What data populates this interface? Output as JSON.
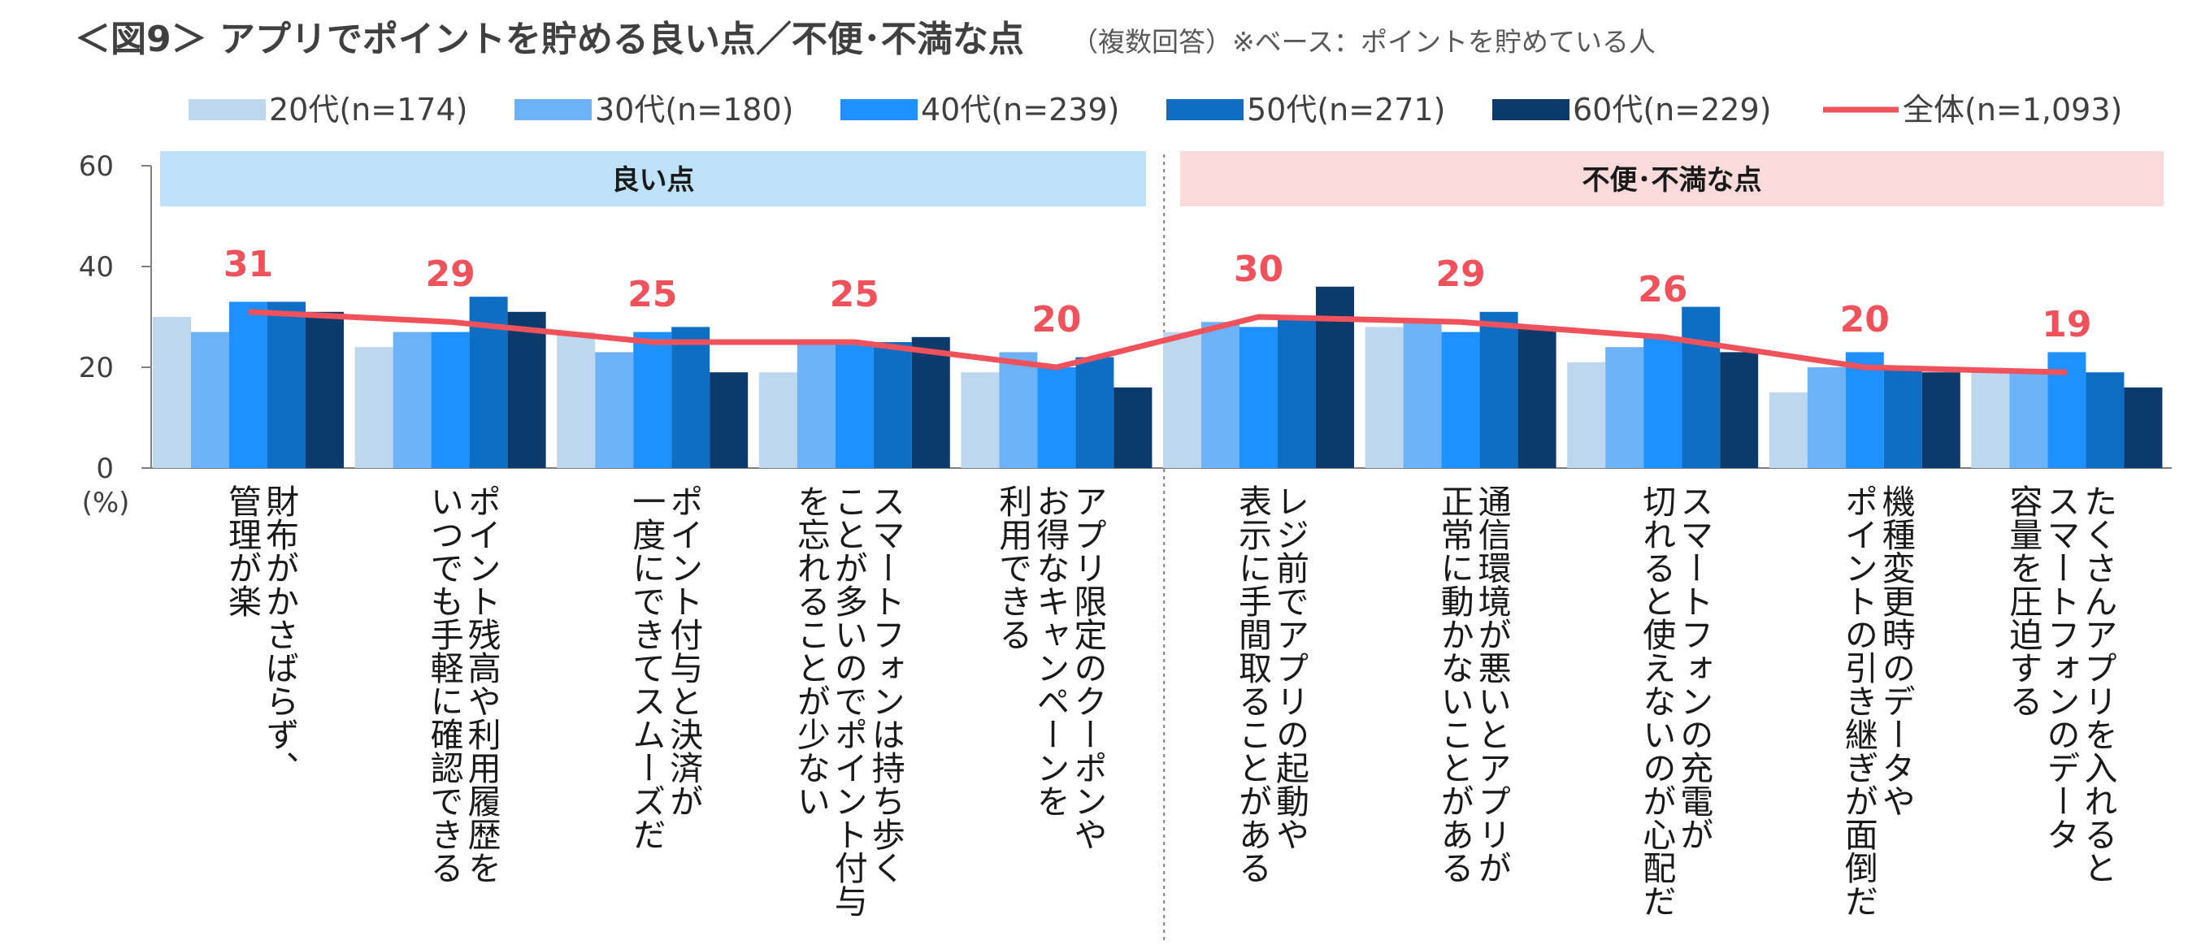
{
  "header": {
    "title": "＜図9＞ アプリでポイントを貯める良い点／不便･不満な点",
    "subtitle": "（複数回答）※ベース：ポイントを貯めている人"
  },
  "colors": {
    "s20": "#BDD7EE",
    "s30": "#6DB2F7",
    "s40": "#1E90FF",
    "s50": "#0E6EC4",
    "s60": "#0B3A6B",
    "total": "#F0525C",
    "good_band": "#BDE2FA",
    "bad_band": "#FBDADB"
  },
  "chart_data": {
    "type": "bar",
    "overlay_type": "line",
    "ylabel": "(%)",
    "ylim": [
      0,
      60
    ],
    "yticks": [
      "0",
      "20",
      "40",
      "60"
    ],
    "grid": false,
    "legend_position": "top",
    "sections": [
      {
        "label": "良い点",
        "from": 0,
        "to": 4
      },
      {
        "label": "不便･不満な点",
        "from": 5,
        "to": 9
      }
    ],
    "categories": [
      [
        "財布がかさばらず、",
        "管理が楽"
      ],
      [
        "ポイント残高や利用履歴を",
        "いつでも手軽に確認できる"
      ],
      [
        "ポイント付与と決済が",
        "一度にできてスムーズだ"
      ],
      [
        "スマートフォンは持ち歩く",
        "ことが多いのでポイント付与",
        "を忘れることが少ない"
      ],
      [
        "アプリ限定のクーポンや",
        "お得なキャンペーンを",
        "利用できる"
      ],
      [
        "レジ前でアプリの起動や",
        "表示に手間取ることがある"
      ],
      [
        "通信環境が悪いとアプリが",
        "正常に動かないことがある"
      ],
      [
        "スマートフォンの充電が",
        "切れると使えないのが心配だ"
      ],
      [
        "機種変更時のデータや",
        "ポイントの引き継ぎが面倒だ"
      ],
      [
        "たくさんアプリを入れると",
        "スマートフォンのデータ",
        "容量を圧迫する"
      ]
    ],
    "series": [
      {
        "name": "20代(n=174)",
        "color": "#BDD7EE",
        "values": [
          30,
          24,
          27,
          19,
          19,
          27,
          28,
          21,
          15,
          19
        ]
      },
      {
        "name": "30代(n=180)",
        "color": "#6DB2F7",
        "values": [
          27,
          27,
          23,
          25,
          23,
          29,
          29,
          24,
          20,
          19
        ]
      },
      {
        "name": "40代(n=239)",
        "color": "#1E90FF",
        "values": [
          33,
          27,
          27,
          25,
          20,
          28,
          27,
          26,
          23,
          23
        ]
      },
      {
        "name": "50代(n=271)",
        "color": "#0E6EC4",
        "values": [
          33,
          34,
          28,
          25,
          22,
          30,
          31,
          32,
          20,
          19
        ]
      },
      {
        "name": "60代(n=229)",
        "color": "#0B3A6B",
        "values": [
          31,
          31,
          19,
          26,
          16,
          36,
          28,
          23,
          19,
          16
        ]
      }
    ],
    "total": {
      "name": "全体(n=1,093)",
      "color": "#F0525C",
      "values": [
        31,
        29,
        25,
        25,
        20,
        30,
        29,
        26,
        20,
        19
      ],
      "labels": [
        "31",
        "29",
        "25",
        "25",
        "20",
        "30",
        "29",
        "26",
        "20",
        "19"
      ]
    }
  }
}
